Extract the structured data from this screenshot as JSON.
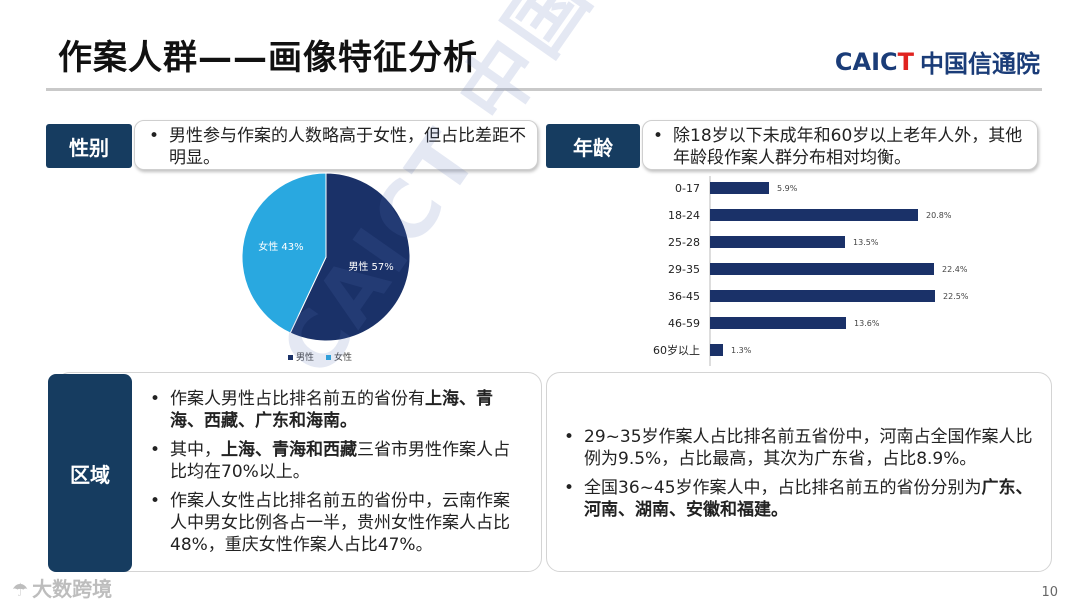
{
  "header": {
    "title": "作案人群——画像特征分析",
    "logo_en_main": "CAIC",
    "logo_en_t": "T",
    "logo_cn": "中国信通院"
  },
  "watermark": "CAICT 中国信通院",
  "gender": {
    "tag": "性别",
    "note": "男性参与作案的人数略高于女性，但占比差距不明显。"
  },
  "age": {
    "tag": "年龄",
    "note": "除18岁以下未成年和60岁以上老年人外，其他年龄段作案人群分布相对均衡。"
  },
  "region": {
    "tag": "区域",
    "left_bullets": [
      {
        "parts": [
          {
            "t": "作案人男性占比排名前五的省份有",
            "b": false
          },
          {
            "t": "上海、青海、西藏、广东和海南。",
            "b": true
          }
        ]
      },
      {
        "parts": [
          {
            "t": "其中，",
            "b": false
          },
          {
            "t": "上海、青海和西藏",
            "b": true
          },
          {
            "t": "三省市男性作案人占比均在70%以上。",
            "b": false
          }
        ]
      },
      {
        "parts": [
          {
            "t": "作案人女性占比排名前五的省份中，云南作案人中男女比例各占一半，贵州女性作案人占比48%，重庆女性作案人占比47%。",
            "b": false
          }
        ]
      }
    ],
    "right_bullets": [
      {
        "parts": [
          {
            "t": "29~35岁作案人占比排名前五省份中，河南占全国作案人比例为9.5%，占比最高，其次为广东省，占比8.9%。",
            "b": false
          }
        ]
      },
      {
        "parts": [
          {
            "t": "全国36~45岁作案人中，占比排名前五的省份分别为",
            "b": false
          },
          {
            "t": "广东、河南、湖南、安徽和福建。",
            "b": true
          }
        ]
      }
    ]
  },
  "footer": {
    "brand": "大数跨境",
    "page": "10"
  },
  "colors": {
    "navy": "#163c60",
    "male": "#1a3168",
    "female": "#29a8e0",
    "bar": "#1a3168"
  },
  "chart_data": [
    {
      "type": "pie",
      "categories": [
        "男性",
        "女性"
      ],
      "values": [
        57,
        43
      ],
      "labels": [
        "男性 57%",
        "女性 43%"
      ],
      "legend": [
        "男性",
        "女性"
      ],
      "legend_position": "bottom"
    },
    {
      "type": "bar",
      "orientation": "horizontal",
      "categories": [
        "0-17",
        "18-24",
        "25-28",
        "29-35",
        "36-45",
        "46-59",
        "60岁以上"
      ],
      "values": [
        5.9,
        20.8,
        13.5,
        22.4,
        22.5,
        13.6,
        1.3
      ],
      "value_labels": [
        "5.9%",
        "20.8%",
        "13.5%",
        "22.4%",
        "22.5%",
        "13.6%",
        "1.3%"
      ],
      "xlim": [
        0,
        25
      ]
    }
  ]
}
